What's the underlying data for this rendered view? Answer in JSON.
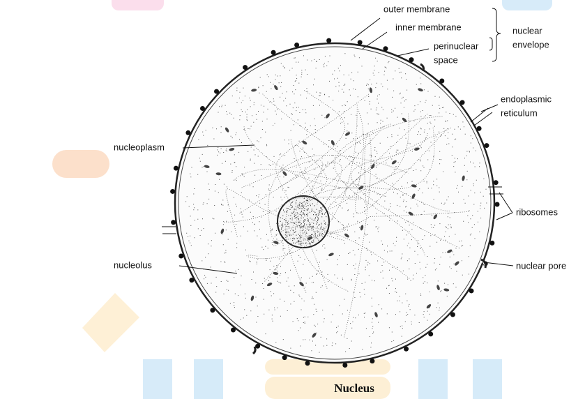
{
  "title": "Nucleus",
  "labels": {
    "outer_membrane": "outer membrane",
    "inner_membrane": "inner membrane",
    "perinuclear_space": [
      "perinuclear",
      "space"
    ],
    "nuclear_envelope": [
      "nuclear",
      "envelope"
    ],
    "endoplasmic_reticulum": [
      "endoplasmic",
      "reticulum"
    ],
    "nucleoplasm": "nucleoplasm",
    "ribosomes": "ribosomes",
    "nucleolus": "nucleolus",
    "nuclear_pore": "nuclear pore"
  }
}
